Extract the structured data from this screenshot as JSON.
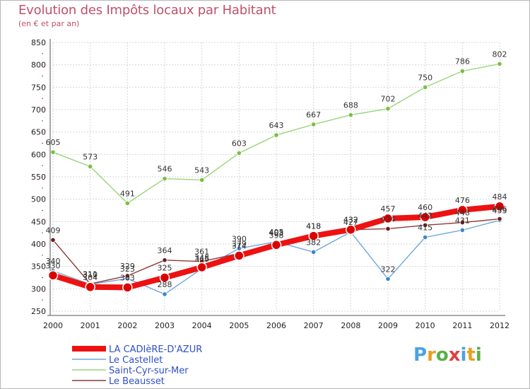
{
  "title": "Evolution des Impôts locaux par Habitant",
  "subtitle": "(en € et par an)",
  "logo": {
    "letters": [
      "P",
      "r",
      "o",
      "x",
      "i",
      "t",
      "i"
    ],
    "colors": [
      "#4aa3df",
      "#e8a020",
      "#5ab04a",
      "#e04040",
      "#4aa3df",
      "#e8a020",
      "#5ab04a"
    ]
  },
  "chart_data": {
    "type": "line",
    "title": "Evolution des Impôts locaux par Habitant",
    "subtitle": "(en € et par an)",
    "xlabel": "",
    "ylabel": "",
    "ylim": [
      250,
      850
    ],
    "yticks": [
      250,
      300,
      350,
      400,
      450,
      500,
      550,
      600,
      650,
      700,
      750,
      800,
      850
    ],
    "grid": true,
    "legend_position": "bottom-left",
    "x": [
      "2000",
      "2001",
      "2002",
      "2003",
      "2004",
      "2005",
      "2006",
      "2007",
      "2008",
      "2009",
      "2010",
      "2011",
      "2012"
    ],
    "series": [
      {
        "name": "Saint-Cyr-sur-Mer",
        "color": "#99d67a",
        "markerColor": "#77c044",
        "values": [
          605,
          573,
          491,
          546,
          543,
          603,
          643,
          667,
          688,
          702,
          750,
          786,
          802
        ],
        "labels": [
          "605",
          "573",
          "491",
          "546",
          "543",
          "603",
          "643",
          "667",
          "688",
          "702",
          "750",
          "786",
          "802"
        ]
      },
      {
        "name": "Le Castellet",
        "color": "#6fa8dc",
        "markerColor": "#3f86c8",
        "values": [
          340,
          310,
          323,
          288,
          345,
          390,
          405,
          382,
          427,
          322,
          415,
          431,
          453
        ],
        "labels": [
          "340",
          "310",
          "323",
          "288",
          "345",
          "390",
          "405",
          "382",
          "427",
          "322",
          "415",
          "431",
          "453"
        ]
      },
      {
        "name": "Le Beausset",
        "color": "#8c3a3a",
        "markerColor": "#6a1e1e",
        "values": [
          409,
          311,
          329,
          364,
          361,
          379,
          403,
          418,
          432,
          434,
          442,
          448,
          456
        ],
        "labels": [
          "409",
          "311",
          "329",
          "364",
          "361",
          "379",
          "403",
          "418",
          "432",
          "434",
          "442",
          "448",
          "456"
        ]
      },
      {
        "name": "LA CADIèRE-D'AZUR",
        "color": "#ee1111",
        "markerColor": "#dd0000",
        "values": [
          330,
          304,
          303,
          325,
          348,
          374,
          398,
          418,
          432,
          457,
          460,
          476,
          484
        ],
        "labels": [
          "330",
          "304",
          "303",
          "325",
          "348",
          "374",
          "398",
          "418",
          "432",
          "457",
          "460",
          "476",
          "484"
        ]
      }
    ],
    "legend": [
      "LA CADIèRE-D'AZUR",
      "Le Castellet",
      "Saint-Cyr-sur-Mer",
      "Le Beausset"
    ]
  }
}
